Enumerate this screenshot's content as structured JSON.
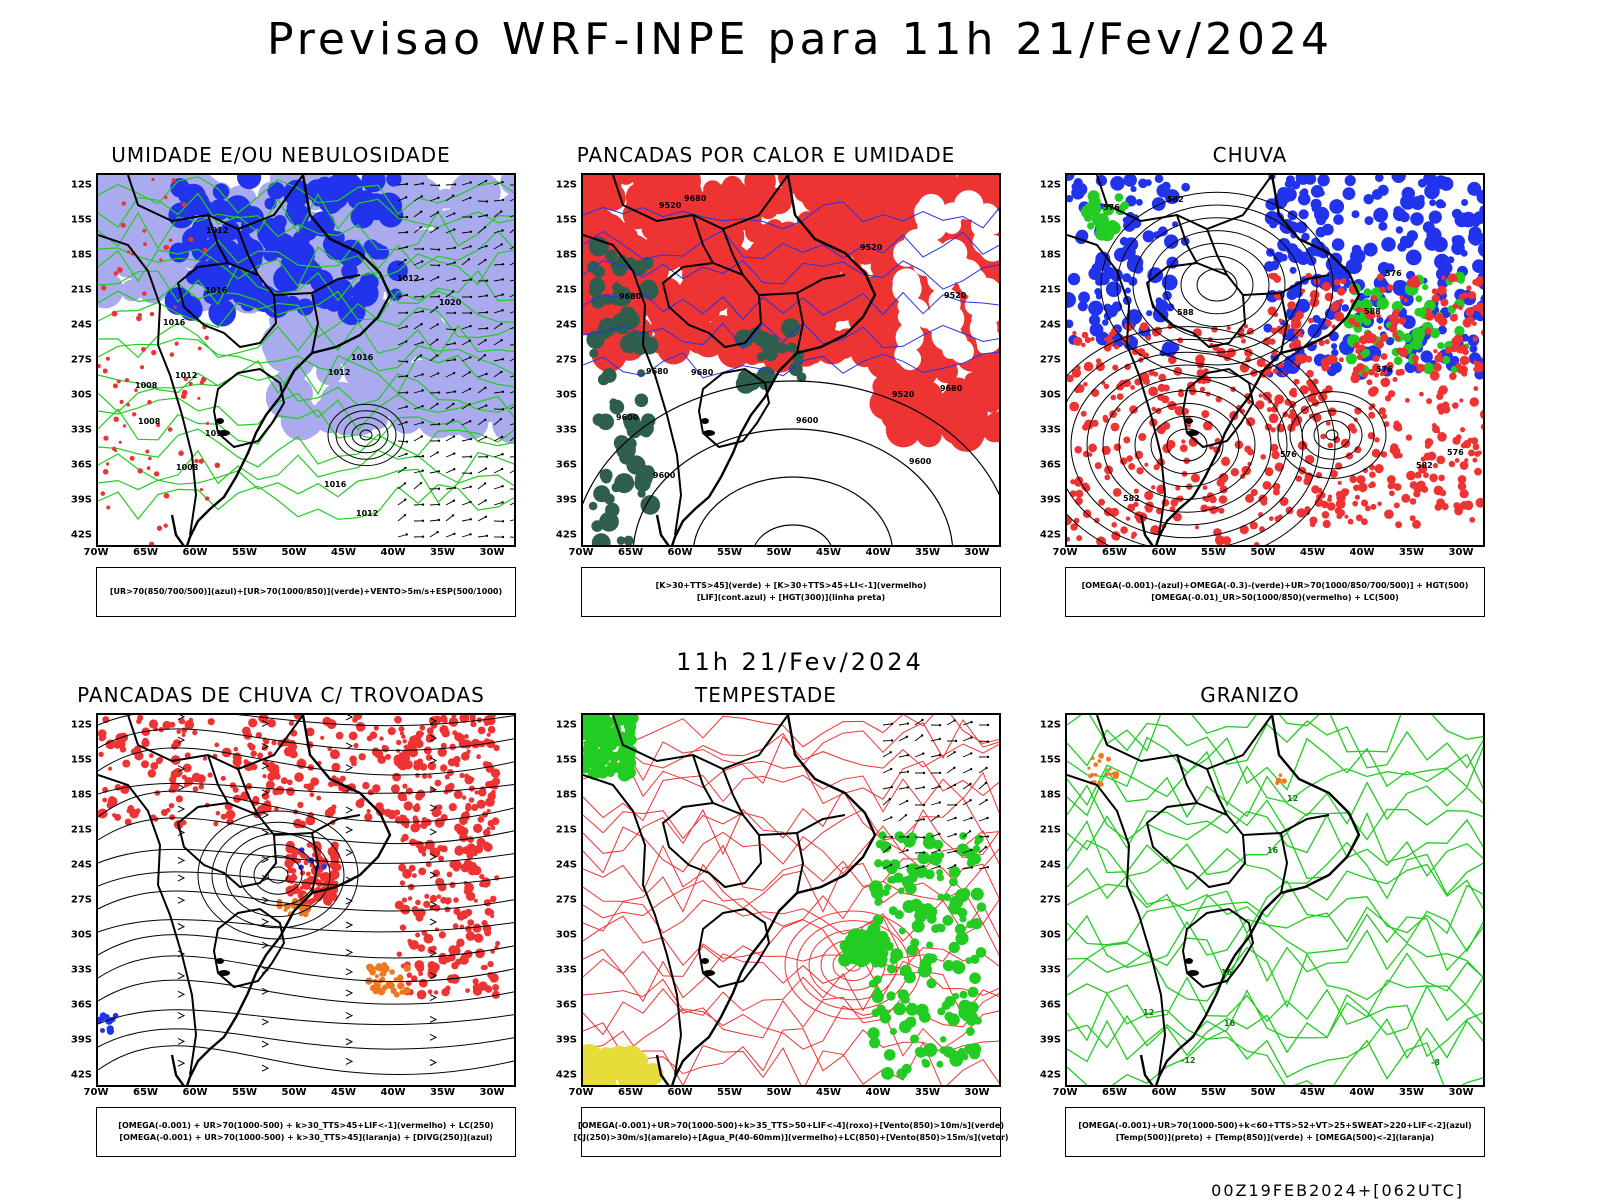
{
  "header": {
    "title": "Previsao WRF-INPE  para 11h 21/Fev/2024"
  },
  "mid_date": "11h 21/Fev/2024",
  "footer": {
    "run_stamp": "00Z19FEB2024+[062UTC]"
  },
  "axes": {
    "lat_labels": [
      "12S",
      "15S",
      "18S",
      "21S",
      "24S",
      "27S",
      "30S",
      "33S",
      "36S",
      "39S",
      "42S"
    ],
    "lon_labels": [
      "70W",
      "65W",
      "60W",
      "55W",
      "50W",
      "45W",
      "40W",
      "35W",
      "30W"
    ]
  },
  "colors": {
    "red": "#ee3333",
    "green": "#22cc22",
    "blue": "#2233ee",
    "lavender": "#aaaaee",
    "darkgreen": "#2e5e4e",
    "orange": "#ee7722",
    "yellow": "#e8dc3a"
  },
  "panels": [
    {
      "title": "UMIDADE E/OU NEBULOSIDADE",
      "legend": [
        "[UR>70(850/700/500)](azul)+[UR>70(1000/850)](verde)+VENTO>5m/s+ESP(500/1000)"
      ],
      "contours": [
        "1012",
        "1012",
        "1008",
        "1016",
        "1016",
        "1008",
        "1012",
        "1012",
        "1012",
        "1008",
        "1012",
        "1016",
        "1020",
        "1016"
      ]
    },
    {
      "title": "PANCADAS POR CALOR E UMIDADE",
      "legend": [
        "[K>30+TTS>45](verde) + [K>30+TTS>45+LI<-1](vermelho)",
        "[LIF](cont.azul) + [HGT(300)](linha preta)"
      ],
      "contours": [
        "9680",
        "9680",
        "9680",
        "9680",
        "9680",
        "9600",
        "9600",
        "9520",
        "9600",
        "9600",
        "9520",
        "9520",
        "9520"
      ]
    },
    {
      "title": "CHUVA",
      "legend": [
        "[OMEGA(-0.001)-(azul)+OMEGA(-0.3)-(verde)+UR>70(1000/850/700/500)] + HGT(500)",
        "[OMEGA(-0.01)_UR>50(1000/850)(vermelho) + LC(500)"
      ],
      "contours": [
        "588",
        "582",
        "576",
        "576",
        "576",
        "582",
        "576",
        "588",
        "582",
        "576"
      ]
    },
    {
      "title": "PANCADAS DE CHUVA C/ TROVOADAS",
      "legend": [
        "[OMEGA(-0.001) + UR>70(1000-500) + k>30_TTS>45+LIF<-1](vermelho) + LC(250)",
        "[OMEGA(-0.001) + UR>70(1000-500) + k>30_TTS>45](laranja) + [DIVG(250)](azul)"
      ],
      "contours": []
    },
    {
      "title": "TEMPESTADE",
      "legend": [
        "[OMEGA(-0.001)+UR>70(1000-500)+k>35_TTS>50+LIF<-4](roxo)+[Vento(850)>10m/s](verde)",
        "[CJ(250)>30m/s](amarelo)+[Agua_P(40-60mm)](vermelho)+LC(850)+[Vento(850)>15m/s](vetor)"
      ],
      "contours": []
    },
    {
      "title": "GRANIZO",
      "legend": [
        "[OMEGA(-0.001)+UR>70(1000-500)+k<60+TTS>52+VT>25+SWEAT>220+LIF<-2](azul)",
        "[Temp(500)](preto) + [Temp(850)](verde) + [OMEGA(500)<-2](laranja)"
      ],
      "contours": [
        "-12",
        "-8",
        "16",
        "16",
        "12",
        "16",
        "12"
      ]
    }
  ]
}
